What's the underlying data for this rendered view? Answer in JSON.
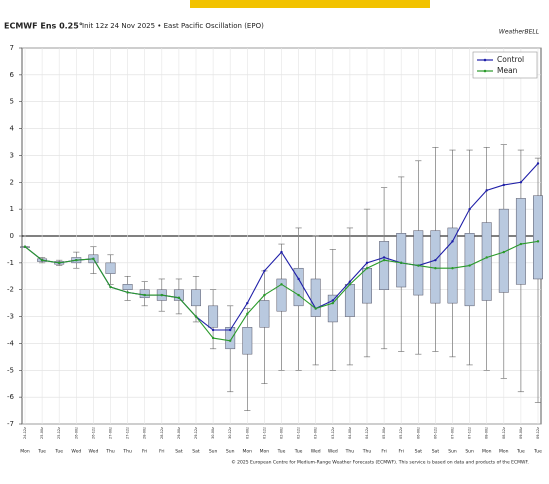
{
  "chart_data": {
    "type": "box",
    "title": "ECMWF Ens 0.25°",
    "subtitle": "Init 12z 24 Nov 2025 • East Pacific Oscillation (EPO)",
    "brand": "WeatherBELL",
    "footer": "© 2025 European Centre for Medium-Range Weather Forecasts (ECMWF). This service is based on data and products of the ECMWF.",
    "categories": [
      "24-12z",
      "25-00z",
      "25-12z",
      "26-00z",
      "26-12z",
      "27-00z",
      "27-12z",
      "28-00z",
      "28-12z",
      "29-00z",
      "29-12z",
      "30-00z",
      "30-12z",
      "01-00z",
      "01-12z",
      "02-00z",
      "02-12z",
      "03-00z",
      "03-12z",
      "04-00z",
      "04-12z",
      "05-00z",
      "05-12z",
      "06-00z",
      "06-12z",
      "07-00z",
      "07-12z",
      "08-00z",
      "08-12z",
      "09-00z",
      "09-12z"
    ],
    "weekdays": [
      "Mon",
      "Tue",
      "Tue",
      "Wed",
      "Wed",
      "Thu",
      "Thu",
      "Fri",
      "Fri",
      "Sat",
      "Sat",
      "Sun",
      "Sun",
      "Mon",
      "Mon",
      "Tue",
      "Tue",
      "Wed",
      "Wed",
      "Thu",
      "Thu",
      "Fri",
      "Fri",
      "Sat",
      "Sat",
      "Sun",
      "Sun",
      "Mon",
      "Mon",
      "Tue",
      "Tue"
    ],
    "ylim": [
      -7,
      7
    ],
    "yticks": [
      -7,
      -6,
      -5,
      -4,
      -3,
      -2,
      -1,
      0,
      1,
      2,
      3,
      4,
      5,
      6,
      7
    ],
    "grid": true,
    "legend": "upper right",
    "box_color": "#b9c9df",
    "boxes": {
      "low": [
        -0.4,
        -1.0,
        -1.1,
        -1.2,
        -1.4,
        -1.8,
        -2.4,
        -2.6,
        -2.8,
        -2.9,
        -3.2,
        -4.2,
        -5.8,
        -6.5,
        -5.5,
        -5.0,
        -5.0,
        -4.8,
        -5.0,
        -4.8,
        -4.5,
        -4.2,
        -4.3,
        -4.4,
        -4.3,
        -4.5,
        -4.8,
        -5.0,
        -5.3,
        -5.8,
        -6.2
      ],
      "q1": [
        -0.4,
        -0.95,
        -1.05,
        -1.0,
        -1.0,
        -1.4,
        -2.0,
        -2.3,
        -2.4,
        -2.4,
        -2.6,
        -3.4,
        -4.2,
        -4.4,
        -3.4,
        -2.8,
        -2.6,
        -3.0,
        -3.2,
        -3.0,
        -2.5,
        -2.0,
        -1.9,
        -2.2,
        -2.5,
        -2.5,
        -2.6,
        -2.4,
        -2.1,
        -1.8,
        -1.6
      ],
      "q3": [
        -0.4,
        -0.85,
        -0.95,
        -0.8,
        -0.7,
        -1.0,
        -1.8,
        -2.0,
        -2.0,
        -2.0,
        -2.0,
        -2.6,
        -3.4,
        -3.4,
        -2.4,
        -1.6,
        -1.2,
        -1.6,
        -2.2,
        -1.8,
        -1.2,
        -0.2,
        0.1,
        0.2,
        0.2,
        0.3,
        0.1,
        0.5,
        1.0,
        1.4,
        1.5
      ],
      "high": [
        -0.4,
        -0.8,
        -0.9,
        -0.6,
        -0.4,
        -0.7,
        -1.5,
        -1.7,
        -1.6,
        -1.6,
        -1.5,
        -2.0,
        -2.6,
        -2.7,
        -1.3,
        -0.3,
        0.3,
        0.0,
        -0.5,
        0.3,
        1.0,
        1.8,
        2.2,
        2.8,
        3.3,
        3.2,
        3.2,
        3.3,
        3.4,
        3.2,
        2.9
      ]
    },
    "series": [
      {
        "name": "Control",
        "color": "#1f1fa8",
        "values": [
          -0.4,
          -0.9,
          -1.0,
          -0.9,
          -0.85,
          -1.9,
          -2.1,
          -2.2,
          -2.2,
          -2.3,
          -3.0,
          -3.5,
          -3.5,
          -2.5,
          -1.3,
          -0.6,
          -1.6,
          -2.7,
          -2.4,
          -1.7,
          -1.0,
          -0.8,
          -1.0,
          -1.1,
          -0.9,
          -0.2,
          1.0,
          1.7,
          1.9,
          2.0,
          2.7
        ]
      },
      {
        "name": "Mean",
        "color": "#2a9a2a",
        "values": [
          -0.4,
          -0.9,
          -1.0,
          -0.9,
          -0.85,
          -1.9,
          -2.1,
          -2.2,
          -2.2,
          -2.3,
          -3.0,
          -3.8,
          -3.9,
          -2.9,
          -2.2,
          -1.8,
          -2.2,
          -2.7,
          -2.5,
          -1.8,
          -1.2,
          -0.9,
          -1.0,
          -1.1,
          -1.2,
          -1.2,
          -1.1,
          -0.8,
          -0.6,
          -0.3,
          -0.2
        ]
      }
    ]
  }
}
